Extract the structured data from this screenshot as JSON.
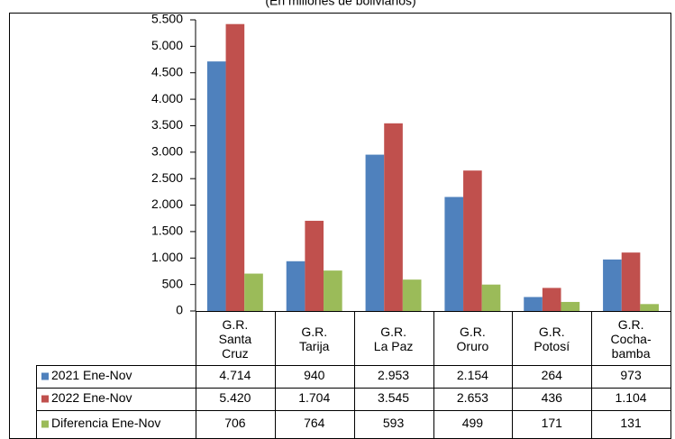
{
  "chart_data": {
    "type": "bar",
    "subtitle": "(En millones de bolivianos)",
    "categories": [
      "G.R.\nSanta\nCruz",
      "G.R.\nTarija",
      "G.R.\nLa Paz",
      "G.R.\nOruro",
      "G.R.\nPotosí",
      "G.R.\nCocha-\nbamba"
    ],
    "series": [
      {
        "name": "2021 Ene-Nov",
        "color": "#4f81bd",
        "values": [
          4714,
          940,
          2953,
          2154,
          264,
          973
        ],
        "value_labels": [
          "4.714",
          "940",
          "2.953",
          "2.154",
          "264",
          "973"
        ]
      },
      {
        "name": "2022 Ene-Nov",
        "color": "#c0504d",
        "values": [
          5420,
          1704,
          3545,
          2653,
          436,
          1104
        ],
        "value_labels": [
          "5.420",
          "1.704",
          "3.545",
          "2.653",
          "436",
          "1.104"
        ]
      },
      {
        "name": "Diferencia Ene-Nov",
        "color": "#9bbb59",
        "values": [
          706,
          764,
          593,
          499,
          171,
          131
        ],
        "value_labels": [
          "706",
          "764",
          "593",
          "499",
          "171",
          "131"
        ]
      }
    ],
    "ylim": [
      0,
      5500
    ],
    "yticks": [
      0,
      500,
      {
        "value": 1000,
        "label": "1.000"
      },
      {
        "value": 1500,
        "label": "1.500"
      },
      {
        "value": 2000,
        "label": "2.000"
      },
      {
        "value": 2500,
        "label": "2.500"
      },
      {
        "value": 3000,
        "label": "3.000"
      },
      {
        "value": 3500,
        "label": "3.500"
      },
      {
        "value": 4000,
        "label": "4.000"
      },
      {
        "value": 4500,
        "label": "4.500"
      },
      {
        "value": 5000,
        "label": "5.000"
      },
      {
        "value": 5500,
        "label": "5.500"
      }
    ],
    "grid": false
  }
}
